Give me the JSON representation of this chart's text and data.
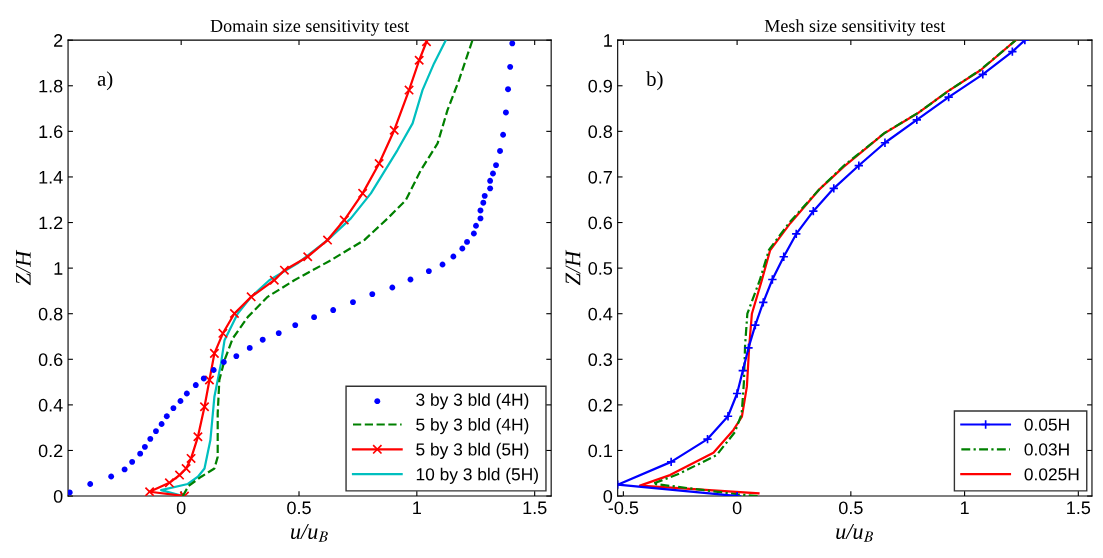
{
  "chart_data": [
    {
      "type": "line",
      "title": "Domain size sensitivity test",
      "xlabel": "u/u$_{B}$",
      "ylabel": "Z/H",
      "annotations": [
        "a)"
      ],
      "xlim": [
        -0.48,
        1.57
      ],
      "ylim": [
        0,
        2
      ],
      "xticks": [
        0,
        0.5,
        1,
        1.5
      ],
      "yticks": [
        0,
        0.2,
        0.4,
        0.6,
        0.8,
        1,
        1.2,
        1.4,
        1.6,
        1.8,
        2
      ],
      "legend": "bottom right",
      "grid": false,
      "series": [
        {
          "name": "3 by 3 bld (4H)",
          "type": "scatter",
          "marker": "circle",
          "color": "#0000ff",
          "x": [
            -0.473,
            -0.386,
            -0.297,
            -0.24,
            -0.208,
            -0.174,
            -0.154,
            -0.131,
            -0.107,
            -0.083,
            -0.061,
            -0.033,
            -0.003,
            0.024,
            0.062,
            0.096,
            0.138,
            0.181,
            0.234,
            0.291,
            0.346,
            0.414,
            0.484,
            0.564,
            0.645,
            0.729,
            0.811,
            0.896,
            0.973,
            1.051,
            1.109,
            1.155,
            1.193,
            1.213,
            1.242,
            1.251,
            1.27,
            1.27,
            1.282,
            1.288,
            1.311,
            1.311,
            1.323,
            1.336,
            1.353,
            1.366,
            1.378,
            1.387,
            1.396,
            1.405
          ],
          "values": [
            0.016,
            0.053,
            0.086,
            0.117,
            0.15,
            0.186,
            0.216,
            0.251,
            0.285,
            0.316,
            0.35,
            0.386,
            0.417,
            0.45,
            0.487,
            0.516,
            0.553,
            0.588,
            0.614,
            0.65,
            0.686,
            0.715,
            0.75,
            0.785,
            0.816,
            0.851,
            0.886,
            0.915,
            0.95,
            0.987,
            1.016,
            1.051,
            1.086,
            1.115,
            1.152,
            1.186,
            1.218,
            1.253,
            1.287,
            1.317,
            1.35,
            1.383,
            1.415,
            1.452,
            1.514,
            1.585,
            1.683,
            1.785,
            1.883,
            1.986
          ]
        },
        {
          "name": "5 by 3 bld (4H)",
          "line_style": "dashed",
          "marker": "none",
          "color": "#008000",
          "x": [
            0.007,
            0.031,
            0.085,
            0.141,
            0.155,
            0.155,
            0.162,
            0.184,
            0.219,
            0.283,
            0.367,
            0.48,
            0.636,
            0.777,
            0.876,
            0.953,
            1.017,
            1.088,
            1.13,
            1.179,
            1.236
          ],
          "values": [
            0,
            0.044,
            0.085,
            0.121,
            0.172,
            0.363,
            0.509,
            0.596,
            0.692,
            0.786,
            0.874,
            0.947,
            1.035,
            1.123,
            1.218,
            1.298,
            1.43,
            1.547,
            1.693,
            1.825,
            2.0
          ]
        },
        {
          "name": "5 by 3 bld (5H)",
          "line_style": "solid",
          "marker": "cross",
          "color": "#ff0000",
          "x": [
            0.014,
            -0.134,
            -0.05,
            -0.007,
            0.021,
            0.042,
            0.071,
            0.099,
            0.12,
            0.141,
            0.177,
            0.226,
            0.297,
            0.395,
            0.438,
            0.537,
            0.621,
            0.692,
            0.77,
            0.84,
            0.904,
            0.967,
            1.01,
            1.041
          ],
          "values": [
            0,
            0.019,
            0.058,
            0.092,
            0.121,
            0.165,
            0.26,
            0.392,
            0.509,
            0.626,
            0.714,
            0.801,
            0.874,
            0.947,
            0.991,
            1.05,
            1.123,
            1.211,
            1.328,
            1.459,
            1.605,
            1.781,
            1.912,
            1.993
          ]
        },
        {
          "name": "10 by 3 bld (5H)",
          "line_style": "solid",
          "marker": "none",
          "color": "#00bfbf",
          "x": [
            0.007,
            -0.085,
            0.028,
            0.071,
            0.099,
            0.124,
            0.141,
            0.169,
            0.184,
            0.24,
            0.297,
            0.374,
            0.494,
            0.621,
            0.72,
            0.805,
            0.918,
            0.982,
            1.024,
            1.073,
            1.123
          ],
          "values": [
            0,
            0.026,
            0.053,
            0.085,
            0.121,
            0.246,
            0.436,
            0.582,
            0.684,
            0.801,
            0.874,
            0.947,
            1.021,
            1.123,
            1.218,
            1.328,
            1.518,
            1.635,
            1.781,
            1.898,
            2.0
          ]
        }
      ]
    },
    {
      "type": "line",
      "title": "Mesh size sensitivity test",
      "xlabel": "u/u$_{B}$",
      "ylabel": "Z/H",
      "annotations": [
        "b)"
      ],
      "xlim": [
        -0.525,
        1.56
      ],
      "ylim": [
        0,
        1
      ],
      "xticks": [
        -0.5,
        0,
        0.5,
        1,
        1.5
      ],
      "yticks": [
        0,
        0.1,
        0.2,
        0.3,
        0.4,
        0.5,
        0.6,
        0.7,
        0.8,
        0.9,
        1
      ],
      "legend": "bottom right",
      "grid": false,
      "series": [
        {
          "name": "0.05H",
          "line_style": "solid",
          "marker": "plus",
          "color": "#0000ff",
          "x": [
            0.0,
            -0.525,
            -0.29,
            -0.13,
            -0.04,
            0.0,
            0.025,
            0.05,
            0.08,
            0.115,
            0.155,
            0.205,
            0.26,
            0.335,
            0.425,
            0.535,
            0.65,
            0.79,
            0.93,
            1.08,
            1.21,
            1.265
          ],
          "values": [
            0,
            0.025,
            0.075,
            0.125,
            0.175,
            0.225,
            0.275,
            0.325,
            0.375,
            0.425,
            0.475,
            0.525,
            0.575,
            0.625,
            0.675,
            0.725,
            0.775,
            0.825,
            0.875,
            0.925,
            0.975,
            1.0
          ]
        },
        {
          "name": "0.03H",
          "line_style": "dashdot",
          "marker": "none",
          "color": "#008000",
          "x": [
            0.09,
            0.0,
            -0.37,
            -0.25,
            -0.09,
            -0.01,
            0.02,
            0.03,
            0.035,
            0.045,
            0.1,
            0.14,
            0.23,
            0.36,
            0.47,
            0.65,
            0.8,
            0.93,
            1.07,
            1.225
          ],
          "values": [
            0,
            0.004,
            0.027,
            0.05,
            0.09,
            0.14,
            0.18,
            0.25,
            0.33,
            0.4,
            0.474,
            0.54,
            0.6,
            0.672,
            0.725,
            0.797,
            0.842,
            0.889,
            0.935,
            1.0
          ]
        },
        {
          "name": "0.025H",
          "line_style": "solid",
          "marker": "none",
          "color": "#ff0000",
          "x": [
            0.094,
            -0.427,
            -0.295,
            -0.104,
            -0.016,
            0.021,
            0.043,
            0.053,
            0.065,
            0.109,
            0.145,
            0.233,
            0.358,
            0.468,
            0.645,
            0.792,
            0.924,
            1.07,
            1.225
          ],
          "values": [
            0.006,
            0.023,
            0.046,
            0.095,
            0.145,
            0.174,
            0.24,
            0.327,
            0.4,
            0.474,
            0.539,
            0.598,
            0.671,
            0.722,
            0.795,
            0.839,
            0.887,
            0.934,
            1.0
          ]
        }
      ]
    }
  ]
}
